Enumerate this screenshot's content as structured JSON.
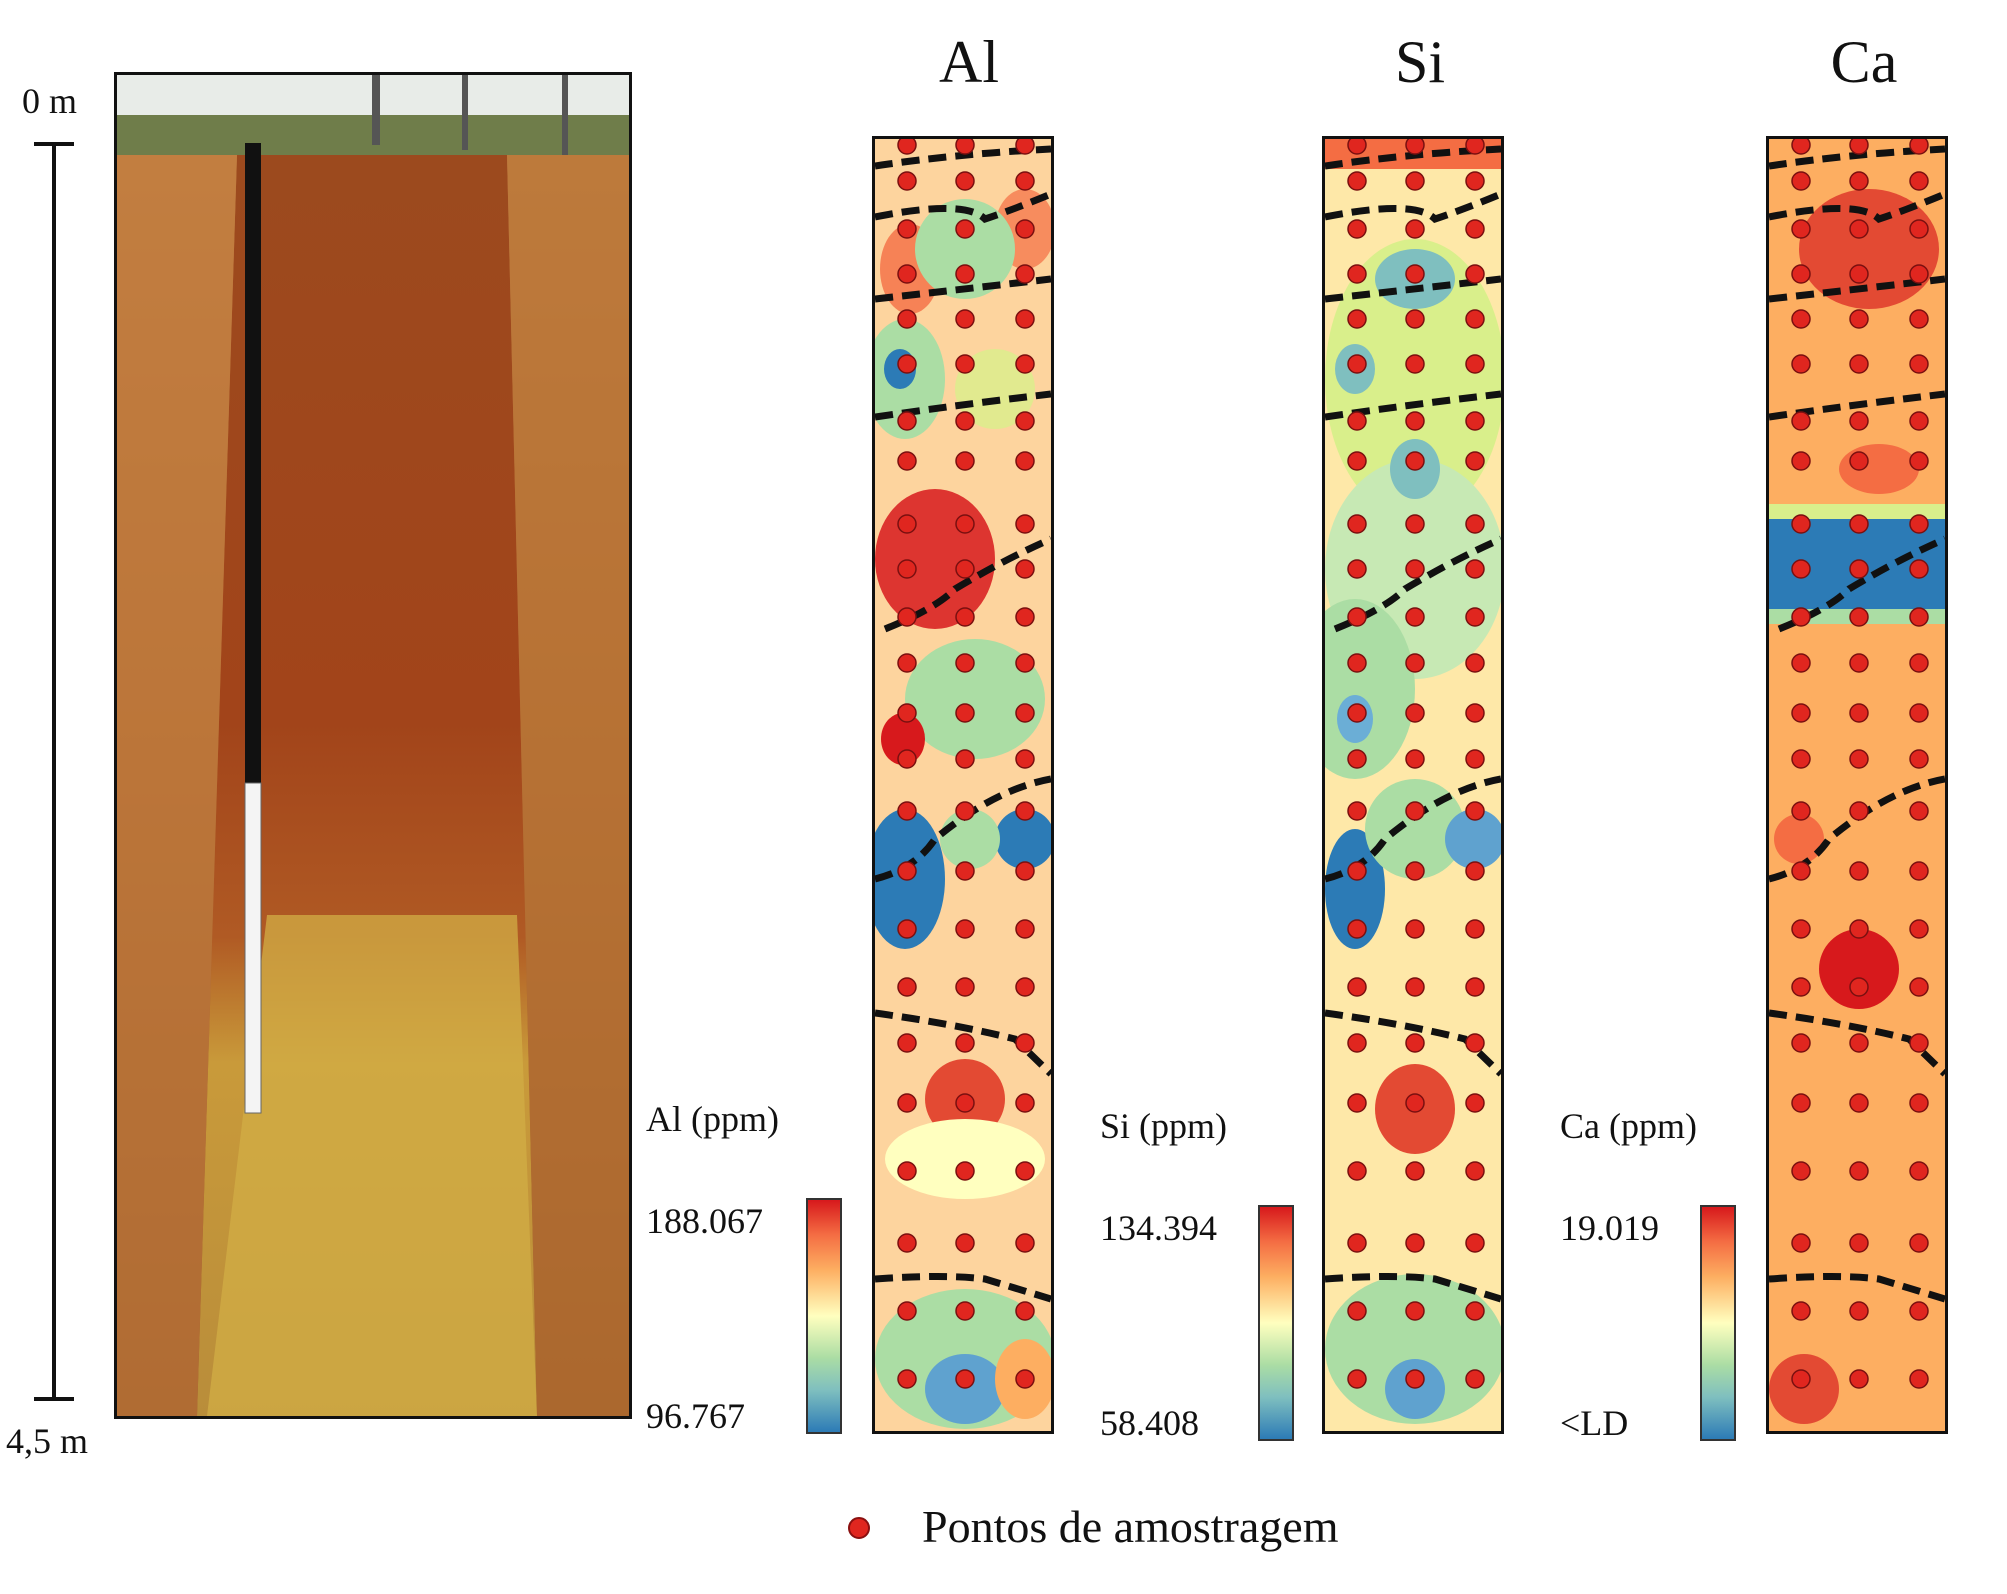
{
  "depth_scale": {
    "top_label": "0 m",
    "bottom_label": "4,5 m"
  },
  "panels": [
    {
      "id": "al",
      "title": "Al",
      "unit_label": "Al (ppm)",
      "max": "188.067",
      "min": "96.767"
    },
    {
      "id": "si",
      "title": "Si",
      "unit_label": "Si (ppm)",
      "max": "134.394",
      "min": "58.408"
    },
    {
      "id": "ca",
      "title": "Ca",
      "unit_label": "Ca (ppm)",
      "max": "19.019",
      "min": "<LD"
    }
  ],
  "legend": {
    "label": "Pontos de amostragem"
  },
  "colors": {
    "sample_point": "#e0261f",
    "ramp": [
      "#2c7bb6",
      "#abdda4",
      "#ffffbf",
      "#fdae61",
      "#d7191c"
    ]
  }
}
